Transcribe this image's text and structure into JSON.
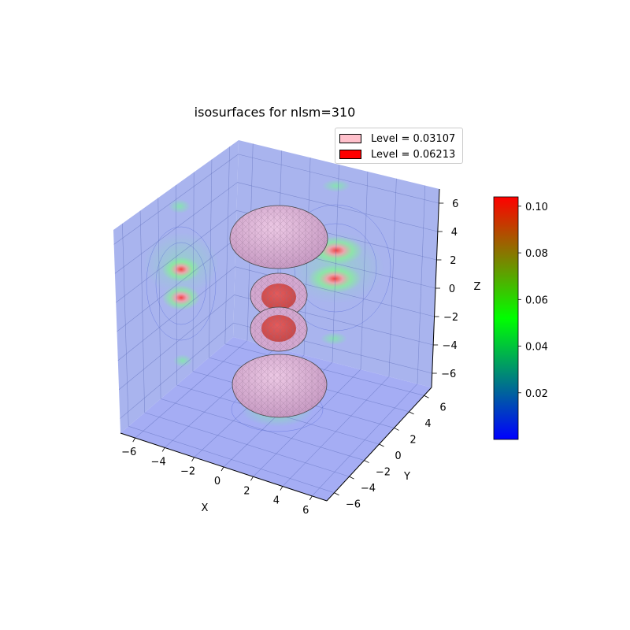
{
  "chart_data": {
    "type": "isosurface-3d",
    "title": "isosurfaces for nlsm=310",
    "xlabel": "X",
    "ylabel": "Y",
    "zlabel": "Z",
    "xlim": [
      -7,
      7
    ],
    "ylim": [
      -7,
      7
    ],
    "zlim": [
      -7,
      7
    ],
    "x_ticks": [
      "−6",
      "−4",
      "−2",
      "0",
      "2",
      "4",
      "6"
    ],
    "y_ticks": [
      "−6",
      "−4",
      "−2",
      "0",
      "2",
      "4",
      "6"
    ],
    "z_ticks": [
      "−6",
      "−4",
      "−2",
      "0",
      "2",
      "4",
      "6"
    ],
    "grid": true,
    "legend_position": "top-right",
    "legend": [
      {
        "label": "Level = 0.03107",
        "color": "#ffc0cb",
        "value": 0.03107
      },
      {
        "label": "Level = 0.06213",
        "color": "#ff0000",
        "value": 0.06213
      }
    ],
    "colorbar": {
      "colors": [
        "#0000ff",
        "#00ff00",
        "#ff0000"
      ],
      "min": 0.0,
      "max": 0.104,
      "ticks": [
        "0.02",
        "0.04",
        "0.06",
        "0.08",
        "0.10"
      ],
      "tick_values": [
        0.02,
        0.04,
        0.06,
        0.08,
        0.1
      ]
    }
  }
}
